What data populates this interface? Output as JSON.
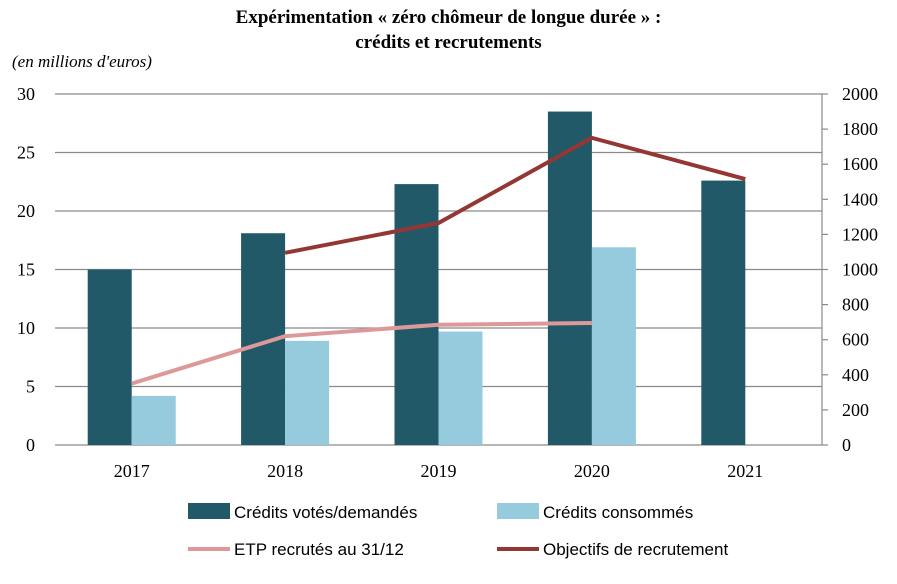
{
  "chart_data": {
    "type": "bar",
    "title": "Expérimentation « zéro chômeur de longue durée » :",
    "subtitle": "crédits et recrutements",
    "ylabel": "(en millions d'euros)",
    "categories": [
      "2017",
      "2018",
      "2019",
      "2020",
      "2021"
    ],
    "ylim": [
      0,
      30
    ],
    "yticks": [
      0,
      5,
      10,
      15,
      20,
      25,
      30
    ],
    "y2lim": [
      0,
      2000
    ],
    "y2ticks": [
      0,
      200,
      400,
      600,
      800,
      1000,
      1200,
      1400,
      1600,
      1800,
      2000
    ],
    "grid": true,
    "legend_position": "bottom",
    "series": [
      {
        "name": "Crédits votés/demandés",
        "kind": "bar",
        "axis": "left",
        "color": "#225968",
        "values": [
          15,
          18.1,
          22.3,
          28.5,
          22.6
        ]
      },
      {
        "name": "Crédits consommés",
        "kind": "bar",
        "axis": "left",
        "color": "#95cbdc",
        "values": [
          4.2,
          8.9,
          9.7,
          16.9,
          null
        ]
      },
      {
        "name": "ETP recrutés au 31/12",
        "kind": "line",
        "axis": "right",
        "color": "#dd9999",
        "values": [
          350,
          620,
          685,
          695,
          null
        ]
      },
      {
        "name": "Objectifs de recrutement",
        "kind": "line",
        "axis": "right",
        "color": "#943634",
        "values": [
          null,
          1095,
          1265,
          1750,
          1515
        ]
      }
    ]
  }
}
